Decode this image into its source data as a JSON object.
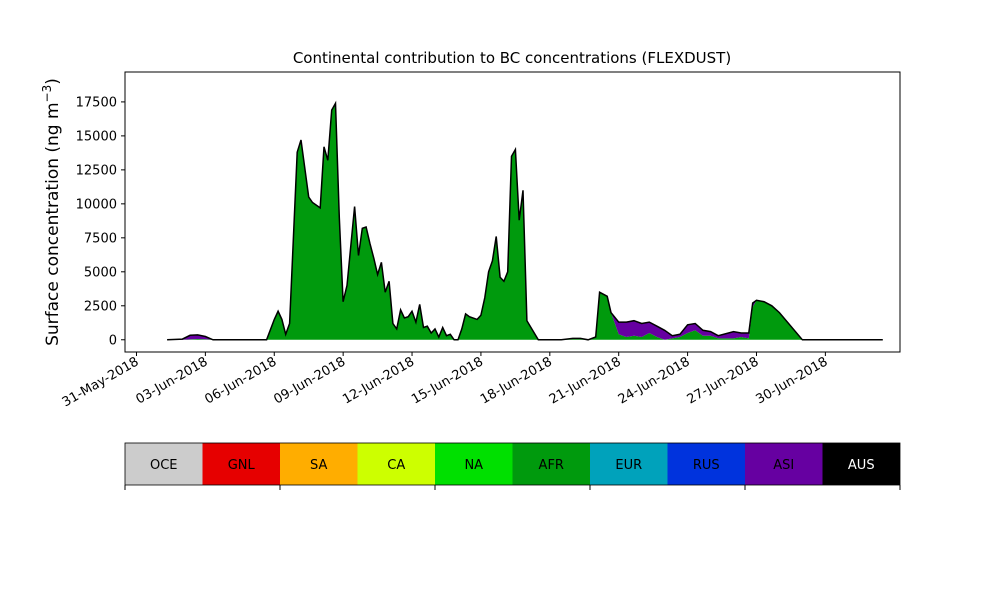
{
  "chart_data": {
    "type": "area",
    "title": "Continental contribution to BC concentrations (FLEXDUST)",
    "ylabel": "Surface concentration (ng m",
    "ylabel_unit_superscript": "−3",
    "ylabel_close": ")",
    "ylim": [
      -900,
      19700
    ],
    "yticks": [
      0,
      2500,
      5000,
      7500,
      10000,
      12500,
      15000,
      17500
    ],
    "xlim": [
      "2018-05-30T12:00",
      "2018-07-03T06:00"
    ],
    "xticks": [
      {
        "date": "2018-05-31",
        "label": "31-May-2018"
      },
      {
        "date": "2018-06-03",
        "label": "03-Jun-2018"
      },
      {
        "date": "2018-06-06",
        "label": "06-Jun-2018"
      },
      {
        "date": "2018-06-09",
        "label": "09-Jun-2018"
      },
      {
        "date": "2018-06-12",
        "label": "12-Jun-2018"
      },
      {
        "date": "2018-06-15",
        "label": "15-Jun-2018"
      },
      {
        "date": "2018-06-18",
        "label": "18-Jun-2018"
      },
      {
        "date": "2018-06-21",
        "label": "21-Jun-2018"
      },
      {
        "date": "2018-06-24",
        "label": "24-Jun-2018"
      },
      {
        "date": "2018-06-27",
        "label": "27-Jun-2018"
      },
      {
        "date": "2018-06-30",
        "label": "30-Jun-2018"
      }
    ],
    "stack_order": [
      "AFR",
      "ASI"
    ],
    "x": [
      "2018-06-01T08:00",
      "2018-06-02T00:00",
      "2018-06-02T08:00",
      "2018-06-02T16:00",
      "2018-06-03T00:00",
      "2018-06-03T08:00",
      "2018-06-04T00:00",
      "2018-06-05T00:00",
      "2018-06-05T12:00",
      "2018-06-05T16:00",
      "2018-06-06T00:00",
      "2018-06-06T04:00",
      "2018-06-06T08:00",
      "2018-06-06T12:00",
      "2018-06-06T16:00",
      "2018-06-07T00:00",
      "2018-06-07T04:00",
      "2018-06-07T12:00",
      "2018-06-07T16:00",
      "2018-06-08T00:00",
      "2018-06-08T04:00",
      "2018-06-08T08:00",
      "2018-06-08T12:00",
      "2018-06-08T16:00",
      "2018-06-08T20:00",
      "2018-06-09T00:00",
      "2018-06-09T04:00",
      "2018-06-09T12:00",
      "2018-06-09T16:00",
      "2018-06-09T20:00",
      "2018-06-10T00:00",
      "2018-06-10T04:00",
      "2018-06-10T08:00",
      "2018-06-10T12:00",
      "2018-06-10T16:00",
      "2018-06-10T20:00",
      "2018-06-11T00:00",
      "2018-06-11T04:00",
      "2018-06-11T08:00",
      "2018-06-11T12:00",
      "2018-06-11T16:00",
      "2018-06-11T20:00",
      "2018-06-12T00:00",
      "2018-06-12T04:00",
      "2018-06-12T08:00",
      "2018-06-12T12:00",
      "2018-06-12T16:00",
      "2018-06-12T20:00",
      "2018-06-13T00:00",
      "2018-06-13T04:00",
      "2018-06-13T08:00",
      "2018-06-13T12:00",
      "2018-06-13T16:00",
      "2018-06-13T20:00",
      "2018-06-14T00:00",
      "2018-06-14T04:00",
      "2018-06-14T08:00",
      "2018-06-14T12:00",
      "2018-06-14T20:00",
      "2018-06-15T00:00",
      "2018-06-15T04:00",
      "2018-06-15T08:00",
      "2018-06-15T12:00",
      "2018-06-15T16:00",
      "2018-06-15T20:00",
      "2018-06-16T00:00",
      "2018-06-16T04:00",
      "2018-06-16T08:00",
      "2018-06-16T12:00",
      "2018-06-16T16:00",
      "2018-06-16T20:00",
      "2018-06-17T00:00",
      "2018-06-17T12:00",
      "2018-06-18T00:00",
      "2018-06-18T12:00",
      "2018-06-19T00:00",
      "2018-06-19T08:00",
      "2018-06-19T16:00",
      "2018-06-20T00:00",
      "2018-06-20T04:00",
      "2018-06-20T12:00",
      "2018-06-20T16:00",
      "2018-06-21T00:00",
      "2018-06-21T08:00",
      "2018-06-21T16:00",
      "2018-06-22T00:00",
      "2018-06-22T08:00",
      "2018-06-22T16:00",
      "2018-06-23T00:00",
      "2018-06-23T08:00",
      "2018-06-23T16:00",
      "2018-06-24T00:00",
      "2018-06-24T08:00",
      "2018-06-24T16:00",
      "2018-06-25T00:00",
      "2018-06-25T08:00",
      "2018-06-26T00:00",
      "2018-06-26T08:00",
      "2018-06-26T16:00",
      "2018-06-26T20:00",
      "2018-06-27T00:00",
      "2018-06-27T08:00",
      "2018-06-27T16:00",
      "2018-06-28T00:00",
      "2018-06-29T00:00",
      "2018-06-30T00:00",
      "2018-07-01T00:00",
      "2018-07-02T00:00",
      "2018-07-02T12:00"
    ],
    "series": [
      {
        "name": "AFR",
        "color": "#009a0d",
        "values": [
          0,
          0,
          30,
          60,
          40,
          0,
          0,
          0,
          0,
          0,
          1500,
          2100,
          1500,
          400,
          1200,
          13800,
          14700,
          10500,
          10100,
          9700,
          14200,
          13200,
          16900,
          17400,
          9000,
          2800,
          4000,
          9800,
          6200,
          8200,
          8300,
          7100,
          6000,
          4800,
          5700,
          3500,
          4300,
          1200,
          800,
          2200,
          1600,
          1700,
          2100,
          1300,
          2600,
          900,
          1000,
          500,
          800,
          200,
          900,
          300,
          400,
          0,
          0,
          800,
          1900,
          1700,
          1500,
          1800,
          3100,
          5000,
          5800,
          7600,
          4600,
          4300,
          5000,
          13500,
          14000,
          8800,
          11000,
          1400,
          0,
          0,
          0,
          100,
          100,
          0,
          200,
          3500,
          3200,
          2000,
          400,
          200,
          300,
          200,
          500,
          200,
          0,
          100,
          200,
          500,
          700,
          300,
          300,
          100,
          100,
          200,
          100,
          2400,
          2900,
          2800,
          2500,
          2000,
          0,
          0,
          0,
          0,
          0
        ]
      },
      {
        "name": "ASI",
        "color": "#6600a1",
        "values": [
          0,
          50,
          300,
          300,
          200,
          0,
          0,
          0,
          0,
          0,
          0,
          0,
          0,
          0,
          0,
          0,
          0,
          0,
          0,
          0,
          0,
          0,
          0,
          0,
          0,
          0,
          0,
          0,
          0,
          0,
          0,
          0,
          0,
          0,
          0,
          0,
          0,
          0,
          0,
          0,
          0,
          0,
          0,
          0,
          0,
          0,
          0,
          0,
          0,
          0,
          0,
          0,
          0,
          0,
          0,
          0,
          0,
          0,
          0,
          0,
          0,
          0,
          0,
          0,
          0,
          0,
          0,
          0,
          0,
          0,
          0,
          0,
          0,
          0,
          0,
          0,
          0,
          0,
          0,
          0,
          0,
          0,
          900,
          1100,
          1100,
          1000,
          800,
          800,
          700,
          200,
          200,
          600,
          500,
          400,
          300,
          200,
          500,
          300,
          400,
          300,
          0,
          0,
          0,
          0,
          0,
          0,
          0,
          0,
          0
        ]
      }
    ],
    "legend": {
      "placement": "below",
      "entries": [
        {
          "name": "OCE",
          "color": "#cccccc",
          "text_color": "#000000"
        },
        {
          "name": "GNL",
          "color": "#e60000",
          "text_color": "#000000"
        },
        {
          "name": "SA",
          "color": "#ffad00",
          "text_color": "#000000"
        },
        {
          "name": "CA",
          "color": "#cdff00",
          "text_color": "#000000"
        },
        {
          "name": "NA",
          "color": "#00e000",
          "text_color": "#000000"
        },
        {
          "name": "AFR",
          "color": "#009a0d",
          "text_color": "#000000"
        },
        {
          "name": "EUR",
          "color": "#00a2bb",
          "text_color": "#000000"
        },
        {
          "name": "RUS",
          "color": "#0033dd",
          "text_color": "#000000"
        },
        {
          "name": "ASI",
          "color": "#6600a1",
          "text_color": "#000000"
        },
        {
          "name": "AUS",
          "color": "#000000",
          "text_color": "#ffffff"
        }
      ]
    },
    "grid": false
  }
}
